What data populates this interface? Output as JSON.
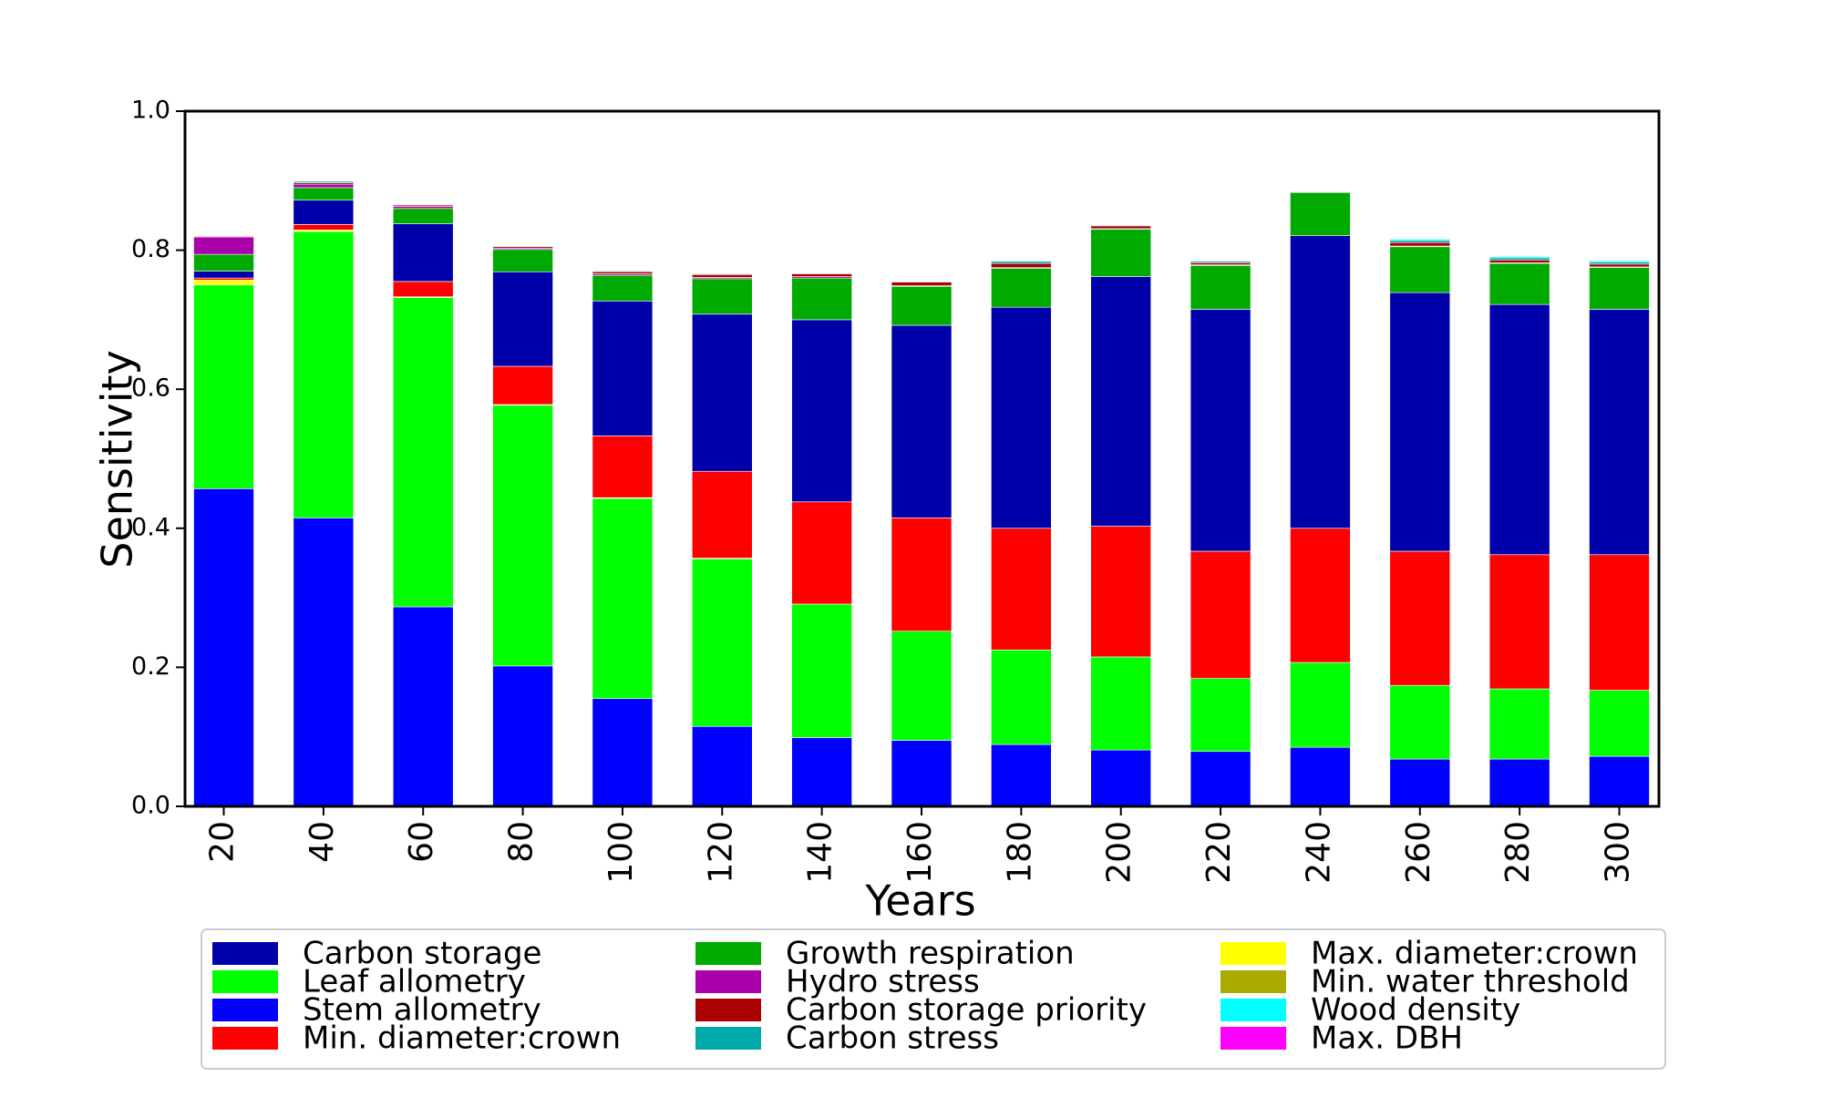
{
  "chart_data": {
    "type": "bar",
    "stacked": true,
    "title": "",
    "xlabel": "Years",
    "ylabel": "Sensitivity",
    "ylim": [
      0,
      1.0
    ],
    "yticks": [
      "0.0",
      "0.2",
      "0.4",
      "0.6",
      "0.8",
      "1.0"
    ],
    "grid": false,
    "legend_position": "bottom",
    "categories": [
      "20",
      "40",
      "60",
      "80",
      "100",
      "120",
      "140",
      "160",
      "180",
      "200",
      "220",
      "240",
      "260",
      "280",
      "300"
    ],
    "series": [
      {
        "name": "Stem allometry",
        "color": "#0000ff",
        "values": [
          0.457,
          0.415,
          0.287,
          0.202,
          0.155,
          0.115,
          0.099,
          0.095,
          0.089,
          0.081,
          0.079,
          0.085,
          0.068,
          0.068,
          0.072
        ]
      },
      {
        "name": "Leaf allometry",
        "color": "#00ff00",
        "values": [
          0.293,
          0.412,
          0.445,
          0.375,
          0.288,
          0.241,
          0.192,
          0.157,
          0.136,
          0.134,
          0.105,
          0.122,
          0.106,
          0.101,
          0.095
        ]
      },
      {
        "name": "Max. diameter:crown",
        "color": "#ffff00",
        "values": [
          0.007,
          0.002,
          0.001,
          0.001,
          0.001,
          0.001,
          0,
          0,
          0,
          0,
          0,
          0,
          0,
          0,
          0
        ]
      },
      {
        "name": "Min. diameter:crown",
        "color": "#ff0000",
        "values": [
          0.003,
          0.008,
          0.022,
          0.055,
          0.089,
          0.125,
          0.147,
          0.163,
          0.175,
          0.188,
          0.183,
          0.193,
          0.193,
          0.193,
          0.195
        ]
      },
      {
        "name": "Carbon storage",
        "color": "#0000aa",
        "values": [
          0.01,
          0.035,
          0.083,
          0.136,
          0.194,
          0.226,
          0.262,
          0.277,
          0.318,
          0.359,
          0.348,
          0.421,
          0.372,
          0.36,
          0.353
        ]
      },
      {
        "name": "Growth respiration",
        "color": "#00aa00",
        "values": [
          0.024,
          0.018,
          0.022,
          0.032,
          0.037,
          0.051,
          0.06,
          0.056,
          0.056,
          0.068,
          0.063,
          0.062,
          0.066,
          0.059,
          0.06
        ]
      },
      {
        "name": "Hydro stress",
        "color": "#aa00aa",
        "values": [
          0.025,
          0.005,
          0.003,
          0.002,
          0.002,
          0.002,
          0.002,
          0.001,
          0.001,
          0.001,
          0.001,
          0,
          0.001,
          0.001,
          0.001
        ]
      },
      {
        "name": "Carbon storage priority",
        "color": "#aa0000",
        "values": [
          0.001,
          0.002,
          0.002,
          0.002,
          0.003,
          0.004,
          0.004,
          0.005,
          0.006,
          0.004,
          0.003,
          0,
          0.005,
          0.004,
          0.004
        ]
      },
      {
        "name": "Carbon stress",
        "color": "#00aaaa",
        "values": [
          0,
          0.002,
          0.001,
          0.001,
          0.001,
          0.001,
          0.001,
          0.001,
          0.003,
          0.001,
          0.002,
          0,
          0.003,
          0.003,
          0.003
        ]
      },
      {
        "name": "Min. water threshold",
        "color": "#aaaa00",
        "values": [
          0,
          0,
          0,
          0,
          0,
          0,
          0,
          0,
          0,
          0,
          0,
          0,
          0,
          0,
          0
        ]
      },
      {
        "name": "Wood density",
        "color": "#00ffff",
        "values": [
          0,
          0,
          0,
          0,
          0,
          0,
          0,
          0,
          0.001,
          0,
          0.001,
          0,
          0.002,
          0.002,
          0.002
        ]
      },
      {
        "name": "Max. DBH",
        "color": "#ff00ff",
        "values": [
          0,
          0,
          0,
          0,
          0,
          0,
          0,
          0,
          0,
          0,
          0,
          0,
          0,
          0,
          0
        ]
      }
    ],
    "legend_order": [
      "Carbon storage",
      "Leaf allometry",
      "Stem allometry",
      "Min. diameter:crown",
      "Growth respiration",
      "Hydro stress",
      "Carbon storage priority",
      "Carbon stress",
      "Max. diameter:crown",
      "Min. water threshold",
      "Wood density",
      "Max. DBH"
    ]
  }
}
